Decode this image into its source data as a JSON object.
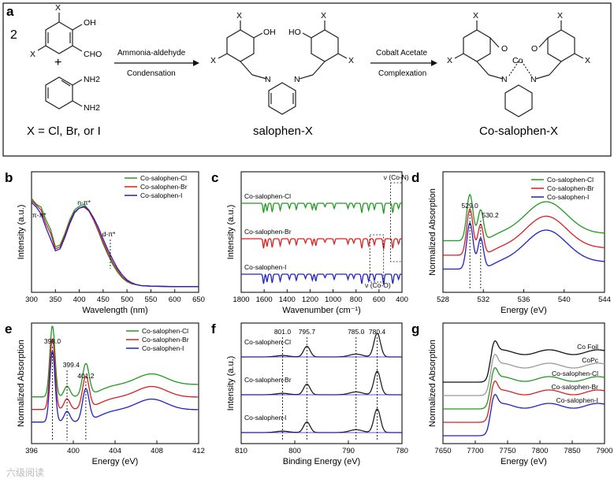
{
  "figure": {
    "panel_labels": [
      "a",
      "b",
      "c",
      "d",
      "e",
      "f",
      "g"
    ],
    "scheme": {
      "reactant_coeff": "2",
      "substituents": {
        "X": "X",
        "OH": "OH",
        "CHO": "CHO",
        "NH2": "NH2",
        "N": "N",
        "O": "O",
        "Co": "Co",
        "HO": "HO"
      },
      "plus": "+",
      "arrow1_top": "Ammonia-aldehyde",
      "arrow1_bottom": "Condensation",
      "arrow2_top": "Cobalt Acetate",
      "arrow2_bottom": "Complexation",
      "x_def": "X = Cl, Br, or I",
      "product1": "salophen-X",
      "product2": "Co-salophen-X"
    },
    "watermark": "六级阅读"
  },
  "chart_data": [
    {
      "panel": "b",
      "type": "line",
      "title": "",
      "xlabel": "Wavelength (nm)",
      "ylabel": "Intensity (a.u.)",
      "xlim": [
        300,
        650
      ],
      "xticks": [
        "300",
        "350",
        "400",
        "450",
        "500",
        "550",
        "600",
        "650"
      ],
      "legend": [
        "Co-salophen-Cl",
        "Co-salophen-Br",
        "Co-salophen-I"
      ],
      "annotations": [
        "π-π*",
        "n-π*",
        "d-π*"
      ],
      "series": [
        {
          "name": "Co-salophen-Cl",
          "color": "#1f9a1f",
          "x": [
            300,
            310,
            320,
            330,
            340,
            350,
            360,
            370,
            380,
            390,
            400,
            410,
            420,
            430,
            440,
            450,
            460,
            470,
            480,
            490,
            500,
            510,
            520,
            530,
            550,
            600,
            650
          ],
          "y": [
            0.92,
            0.86,
            0.83,
            0.7,
            0.6,
            0.42,
            0.44,
            0.56,
            0.7,
            0.8,
            0.84,
            0.86,
            0.8,
            0.7,
            0.58,
            0.45,
            0.34,
            0.24,
            0.16,
            0.1,
            0.06,
            0.04,
            0.03,
            0.02,
            0.015,
            0.01,
            0.01
          ]
        },
        {
          "name": "Co-salophen-Br",
          "color": "#d62020",
          "x": [
            300,
            310,
            320,
            330,
            340,
            350,
            360,
            370,
            380,
            390,
            400,
            410,
            420,
            430,
            440,
            450,
            460,
            470,
            480,
            490,
            500,
            510,
            520,
            530,
            550,
            600,
            650
          ],
          "y": [
            0.9,
            0.85,
            0.8,
            0.66,
            0.56,
            0.4,
            0.42,
            0.54,
            0.68,
            0.78,
            0.82,
            0.83,
            0.79,
            0.7,
            0.59,
            0.47,
            0.36,
            0.26,
            0.18,
            0.11,
            0.07,
            0.04,
            0.03,
            0.02,
            0.015,
            0.01,
            0.01
          ]
        },
        {
          "name": "Co-salophen-I",
          "color": "#2020c8",
          "x": [
            300,
            310,
            320,
            330,
            340,
            350,
            360,
            370,
            380,
            390,
            400,
            410,
            420,
            430,
            440,
            450,
            460,
            470,
            480,
            490,
            500,
            510,
            520,
            530,
            550,
            600,
            650
          ],
          "y": [
            0.88,
            0.83,
            0.76,
            0.62,
            0.5,
            0.38,
            0.4,
            0.52,
            0.66,
            0.77,
            0.82,
            0.84,
            0.8,
            0.72,
            0.62,
            0.5,
            0.39,
            0.29,
            0.2,
            0.13,
            0.08,
            0.05,
            0.03,
            0.02,
            0.015,
            0.01,
            0.01
          ]
        }
      ]
    },
    {
      "panel": "c",
      "type": "line",
      "title": "",
      "xlabel": "Wavenumber (cm⁻¹)",
      "ylabel": "Intensity (a.u.)",
      "xlim": [
        1800,
        400
      ],
      "xticks": [
        "1800",
        "1600",
        "1400",
        "1200",
        "1000",
        "800",
        "600",
        "400"
      ],
      "annotations": [
        "ν (Co-N)",
        "ν (Co-O)"
      ],
      "series": [
        {
          "name": "Co-salophen-Cl",
          "label": "Co-salophen-Cl",
          "color": "#1f9a1f",
          "offset": 2.0
        },
        {
          "name": "Co-salophen-Br",
          "label": "Co-salophen-Br",
          "color": "#d62020",
          "offset": 1.0
        },
        {
          "name": "Co-salophen-I",
          "label": "Co-salophen-I",
          "color": "#2020c8",
          "offset": 0.0
        }
      ]
    },
    {
      "panel": "d",
      "type": "line",
      "title": "",
      "xlabel": "Energy (eV)",
      "ylabel": "Normalized Absorption",
      "xlim": [
        526,
        544
      ],
      "xticks": [
        "528",
        "532",
        "536",
        "540",
        "544"
      ],
      "legend": [
        "Co-salophen-Cl",
        "Co-salophen-Br",
        "Co-salophen-I"
      ],
      "peaks": [
        "529.0",
        "530.2"
      ],
      "series": [
        {
          "name": "Co-salophen-Cl",
          "color": "#1f9a1f",
          "offset": 0.45
        },
        {
          "name": "Co-salophen-Br",
          "color": "#d62020",
          "offset": 0.22
        },
        {
          "name": "Co-salophen-I",
          "color": "#2020c8",
          "offset": 0.0
        }
      ]
    },
    {
      "panel": "e",
      "type": "line",
      "title": "",
      "xlabel": "Energy (eV)",
      "ylabel": "Normalized Absorption",
      "xlim": [
        396,
        412
      ],
      "xticks": [
        "396",
        "400",
        "404",
        "408",
        "412"
      ],
      "legend": [
        "Co-salophen-Cl",
        "Co-salophen-Br",
        "Co-salophen-I"
      ],
      "peaks": [
        "398.0",
        "399.4",
        "401.2"
      ],
      "series": [
        {
          "name": "Co-salophen-Cl",
          "color": "#1f9a1f",
          "offset": 0.4
        },
        {
          "name": "Co-salophen-Br",
          "color": "#d62020",
          "offset": 0.2
        },
        {
          "name": "Co-salophen-I",
          "color": "#2020c8",
          "offset": 0.0
        }
      ]
    },
    {
      "panel": "f",
      "type": "line",
      "title": "",
      "xlabel": "Binding Energy (eV)",
      "ylabel": "Intensity (a.u.)",
      "xlim": [
        810,
        775
      ],
      "xticks": [
        "810",
        "800",
        "790",
        "780"
      ],
      "peaks": [
        "801.0",
        "795.7",
        "785.0",
        "780.4"
      ],
      "series": [
        {
          "name": "Co-salophen-Cl",
          "label": "Co-salophen-Cl",
          "color": "#222222",
          "offset": 2.0
        },
        {
          "name": "Co-salophen-Br",
          "label": "Co-salophen-Br",
          "color": "#222222",
          "offset": 1.0
        },
        {
          "name": "Co-salophen-I",
          "label": "Co-salophen-I",
          "color": "#222222",
          "offset": 0.0
        }
      ]
    },
    {
      "panel": "g",
      "type": "line",
      "title": "",
      "xlabel": "Energy (eV)",
      "ylabel": "Normalized Absorption",
      "xlim": [
        7650,
        7900
      ],
      "xticks": [
        "7650",
        "7700",
        "7750",
        "7800",
        "7850",
        "7900"
      ],
      "series": [
        {
          "name": "Co Foil",
          "label": "Co Foil",
          "color": "#111111",
          "offset": 4.0
        },
        {
          "name": "CoPc",
          "label": "CoPc",
          "color": "#999999",
          "offset": 3.0
        },
        {
          "name": "Co-salophen-Cl",
          "label": "Co-salophen-Cl",
          "color": "#1f9a1f",
          "offset": 2.0
        },
        {
          "name": "Co-salophen-Br",
          "label": "Co-salophen-Br",
          "color": "#d62020",
          "offset": 1.0
        },
        {
          "name": "Co-salophen-I",
          "label": "Co-salophen-I",
          "color": "#2020c8",
          "offset": 0.0
        }
      ]
    }
  ]
}
